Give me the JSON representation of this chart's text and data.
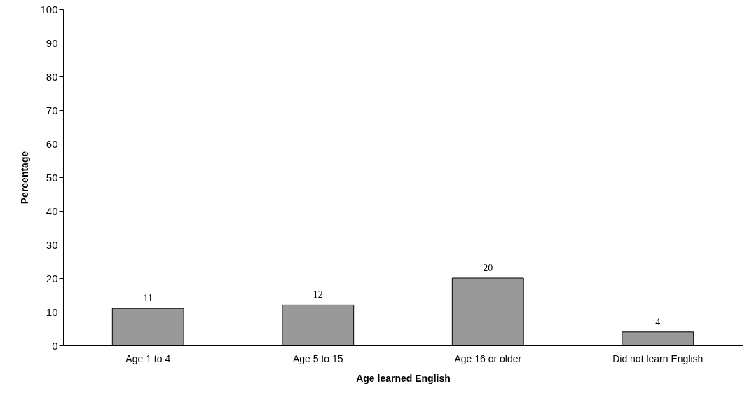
{
  "chart_data": {
    "type": "bar",
    "xlabel": "Age learned English",
    "ylabel": "Percentage",
    "categories": [
      "Age 1 to 4",
      "Age 5 to 15",
      "Age 16 or older",
      "Did not learn English"
    ],
    "values": [
      11,
      12,
      20,
      4
    ],
    "color": "#999999",
    "ylim": [
      0,
      100
    ],
    "yticks": [
      0,
      10,
      20,
      30,
      40,
      50,
      60,
      70,
      80,
      90,
      100
    ],
    "grid": false,
    "data_labels": true
  }
}
